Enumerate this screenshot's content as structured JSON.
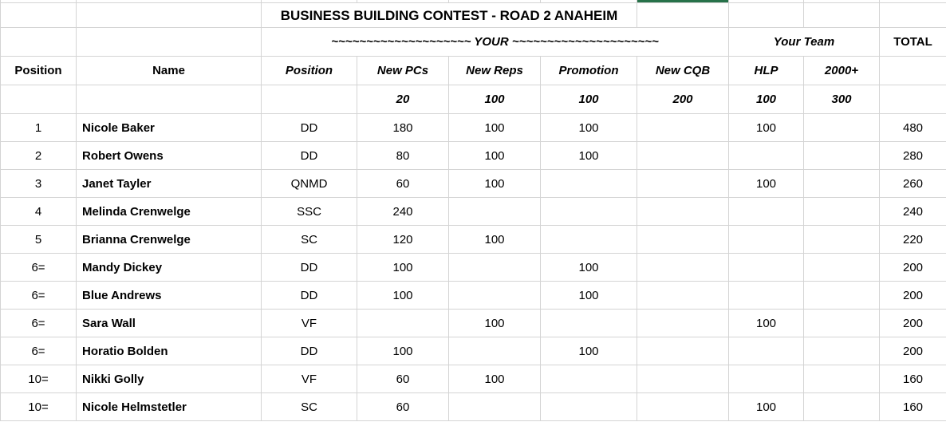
{
  "sheet": {
    "title": "BUSINESS BUILDING CONTEST - ROAD 2 ANAHEIM",
    "your_banner_text": "~~~~~~~~~~~~~~~~~~~~ YOUR ~~~~~~~~~~~~~~~~~~~~~",
    "your_team_label": "Your Team",
    "total_label": "TOTAL",
    "colors": {
      "selection_green": "#27724a",
      "gridline": "#d4d4d4",
      "text": "#000000",
      "background": "#ffffff"
    }
  },
  "columns": [
    {
      "key": "rank",
      "label": "Position",
      "points": ""
    },
    {
      "key": "name",
      "label": "Name",
      "points": ""
    },
    {
      "key": "title",
      "label": "Position",
      "points": ""
    },
    {
      "key": "new_pcs",
      "label": "New PCs",
      "points": "20"
    },
    {
      "key": "new_reps",
      "label": "New Reps",
      "points": "100"
    },
    {
      "key": "promotion",
      "label": "Promotion",
      "points": "100"
    },
    {
      "key": "new_cqb",
      "label": "New CQB",
      "points": "200"
    },
    {
      "key": "hlp",
      "label": "HLP",
      "points": "100"
    },
    {
      "key": "plus2000",
      "label": "2000+",
      "points": "300"
    },
    {
      "key": "total",
      "label": "",
      "points": ""
    }
  ],
  "rows": [
    {
      "rank": "1",
      "name": "Nicole Baker",
      "title": "DD",
      "new_pcs": "180",
      "new_reps": "100",
      "promotion": "100",
      "new_cqb": "",
      "hlp": "100",
      "plus2000": "",
      "total": "480"
    },
    {
      "rank": "2",
      "name": "Robert Owens",
      "title": "DD",
      "new_pcs": "80",
      "new_reps": "100",
      "promotion": "100",
      "new_cqb": "",
      "hlp": "",
      "plus2000": "",
      "total": "280"
    },
    {
      "rank": "3",
      "name": "Janet Tayler",
      "title": "QNMD",
      "new_pcs": "60",
      "new_reps": "100",
      "promotion": "",
      "new_cqb": "",
      "hlp": "100",
      "plus2000": "",
      "total": "260"
    },
    {
      "rank": "4",
      "name": "Melinda Crenwelge",
      "title": "SSC",
      "new_pcs": "240",
      "new_reps": "",
      "promotion": "",
      "new_cqb": "",
      "hlp": "",
      "plus2000": "",
      "total": "240"
    },
    {
      "rank": "5",
      "name": "Brianna Crenwelge",
      "title": "SC",
      "new_pcs": "120",
      "new_reps": "100",
      "promotion": "",
      "new_cqb": "",
      "hlp": "",
      "plus2000": "",
      "total": "220"
    },
    {
      "rank": "6=",
      "name": "Mandy Dickey",
      "title": "DD",
      "new_pcs": "100",
      "new_reps": "",
      "promotion": "100",
      "new_cqb": "",
      "hlp": "",
      "plus2000": "",
      "total": "200"
    },
    {
      "rank": "6=",
      "name": "Blue Andrews",
      "title": "DD",
      "new_pcs": "100",
      "new_reps": "",
      "promotion": "100",
      "new_cqb": "",
      "hlp": "",
      "plus2000": "",
      "total": "200"
    },
    {
      "rank": "6=",
      "name": "Sara Wall",
      "title": "VF",
      "new_pcs": "",
      "new_reps": "100",
      "promotion": "",
      "new_cqb": "",
      "hlp": "100",
      "plus2000": "",
      "total": "200"
    },
    {
      "rank": "6=",
      "name": "Horatio Bolden",
      "title": "DD",
      "new_pcs": "100",
      "new_reps": "",
      "promotion": "100",
      "new_cqb": "",
      "hlp": "",
      "plus2000": "",
      "total": "200"
    },
    {
      "rank": "10=",
      "name": "Nikki Golly",
      "title": "VF",
      "new_pcs": "60",
      "new_reps": "100",
      "promotion": "",
      "new_cqb": "",
      "hlp": "",
      "plus2000": "",
      "total": "160"
    },
    {
      "rank": "10=",
      "name": "Nicole Helmstetler",
      "title": "SC",
      "new_pcs": "60",
      "new_reps": "",
      "promotion": "",
      "new_cqb": "",
      "hlp": "100",
      "plus2000": "",
      "total": "160"
    }
  ]
}
